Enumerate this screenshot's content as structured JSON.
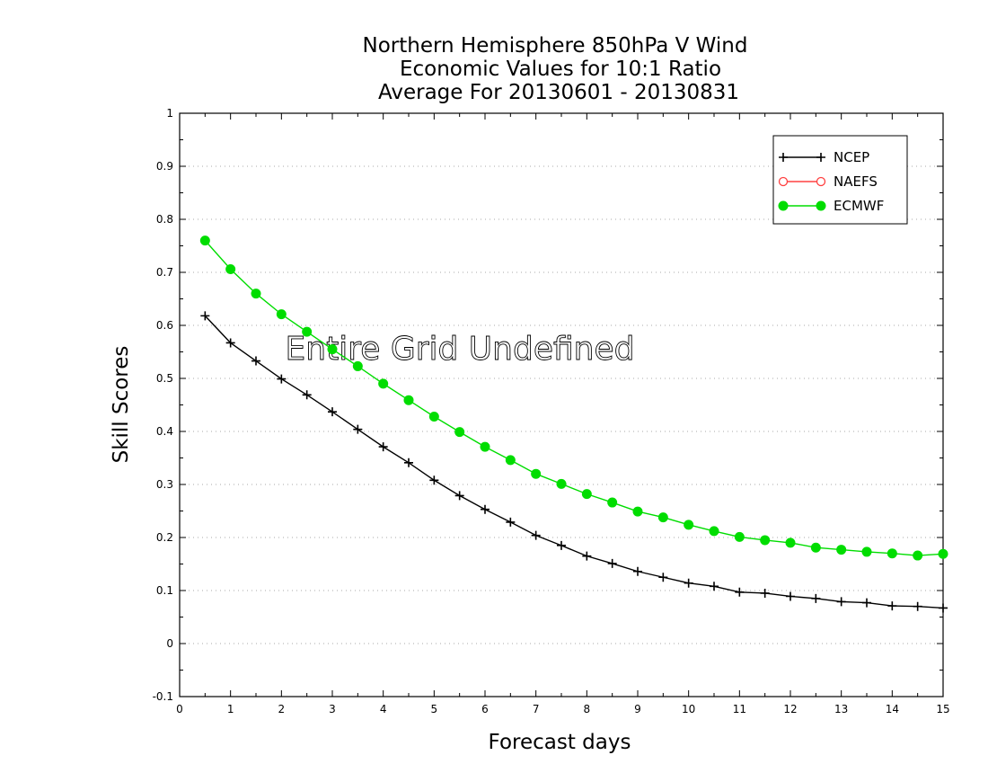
{
  "chart_data": {
    "type": "line",
    "title": [
      "Northern Hemisphere 850hPa V Wind",
      "Economic Values for 10:1 Ratio",
      "Average For 20130601 - 20130831"
    ],
    "xlabel": "Forecast days",
    "ylabel": "Skill Scores",
    "xlim": [
      0,
      15
    ],
    "ylim": [
      -0.1,
      1
    ],
    "x_ticks": [
      "0",
      "1",
      "2",
      "3",
      "4",
      "5",
      "6",
      "7",
      "8",
      "9",
      "10",
      "11",
      "12",
      "13",
      "14",
      "15"
    ],
    "y_ticks": [
      "-0.1",
      "0",
      "0.1",
      "0.2",
      "0.3",
      "0.4",
      "0.5",
      "0.6",
      "0.7",
      "0.8",
      "0.9",
      "1"
    ],
    "grid": "horizontal dotted",
    "legend_position": "top-right",
    "annotation": "Entire Grid Undefined",
    "series": [
      {
        "name": "NCEP",
        "color": "#000000",
        "marker": "plus",
        "x": [
          0.5,
          1,
          1.5,
          2,
          2.5,
          3,
          3.5,
          4,
          4.5,
          5,
          5.5,
          6,
          6.5,
          7,
          7.5,
          8,
          8.5,
          9,
          9.5,
          10,
          10.5,
          11,
          11.5,
          12,
          12.5,
          13,
          13.5,
          14,
          14.5,
          15
        ],
        "values": [
          0.618,
          0.567,
          0.533,
          0.499,
          0.469,
          0.437,
          0.404,
          0.371,
          0.341,
          0.308,
          0.279,
          0.253,
          0.229,
          0.204,
          0.185,
          0.165,
          0.151,
          0.136,
          0.125,
          0.114,
          0.108,
          0.097,
          0.095,
          0.089,
          0.085,
          0.079,
          0.077,
          0.071,
          0.07,
          0.067
        ]
      },
      {
        "name": "NAEFS",
        "color": "#ff4040",
        "marker": "open-circle",
        "x": [],
        "values": []
      },
      {
        "name": "ECMWF",
        "color": "#00dd00",
        "marker": "filled-circle",
        "x": [
          0.5,
          1,
          1.5,
          2,
          2.5,
          3,
          3.5,
          4,
          4.5,
          5,
          5.5,
          6,
          6.5,
          7,
          7.5,
          8,
          8.5,
          9,
          9.5,
          10,
          10.5,
          11,
          11.5,
          12,
          12.5,
          13,
          13.5,
          14,
          14.5,
          15
        ],
        "values": [
          0.76,
          0.706,
          0.66,
          0.621,
          0.588,
          0.555,
          0.523,
          0.49,
          0.459,
          0.428,
          0.399,
          0.371,
          0.346,
          0.32,
          0.301,
          0.282,
          0.266,
          0.249,
          0.238,
          0.224,
          0.212,
          0.201,
          0.195,
          0.19,
          0.181,
          0.177,
          0.173,
          0.17,
          0.166,
          0.169
        ]
      }
    ]
  }
}
